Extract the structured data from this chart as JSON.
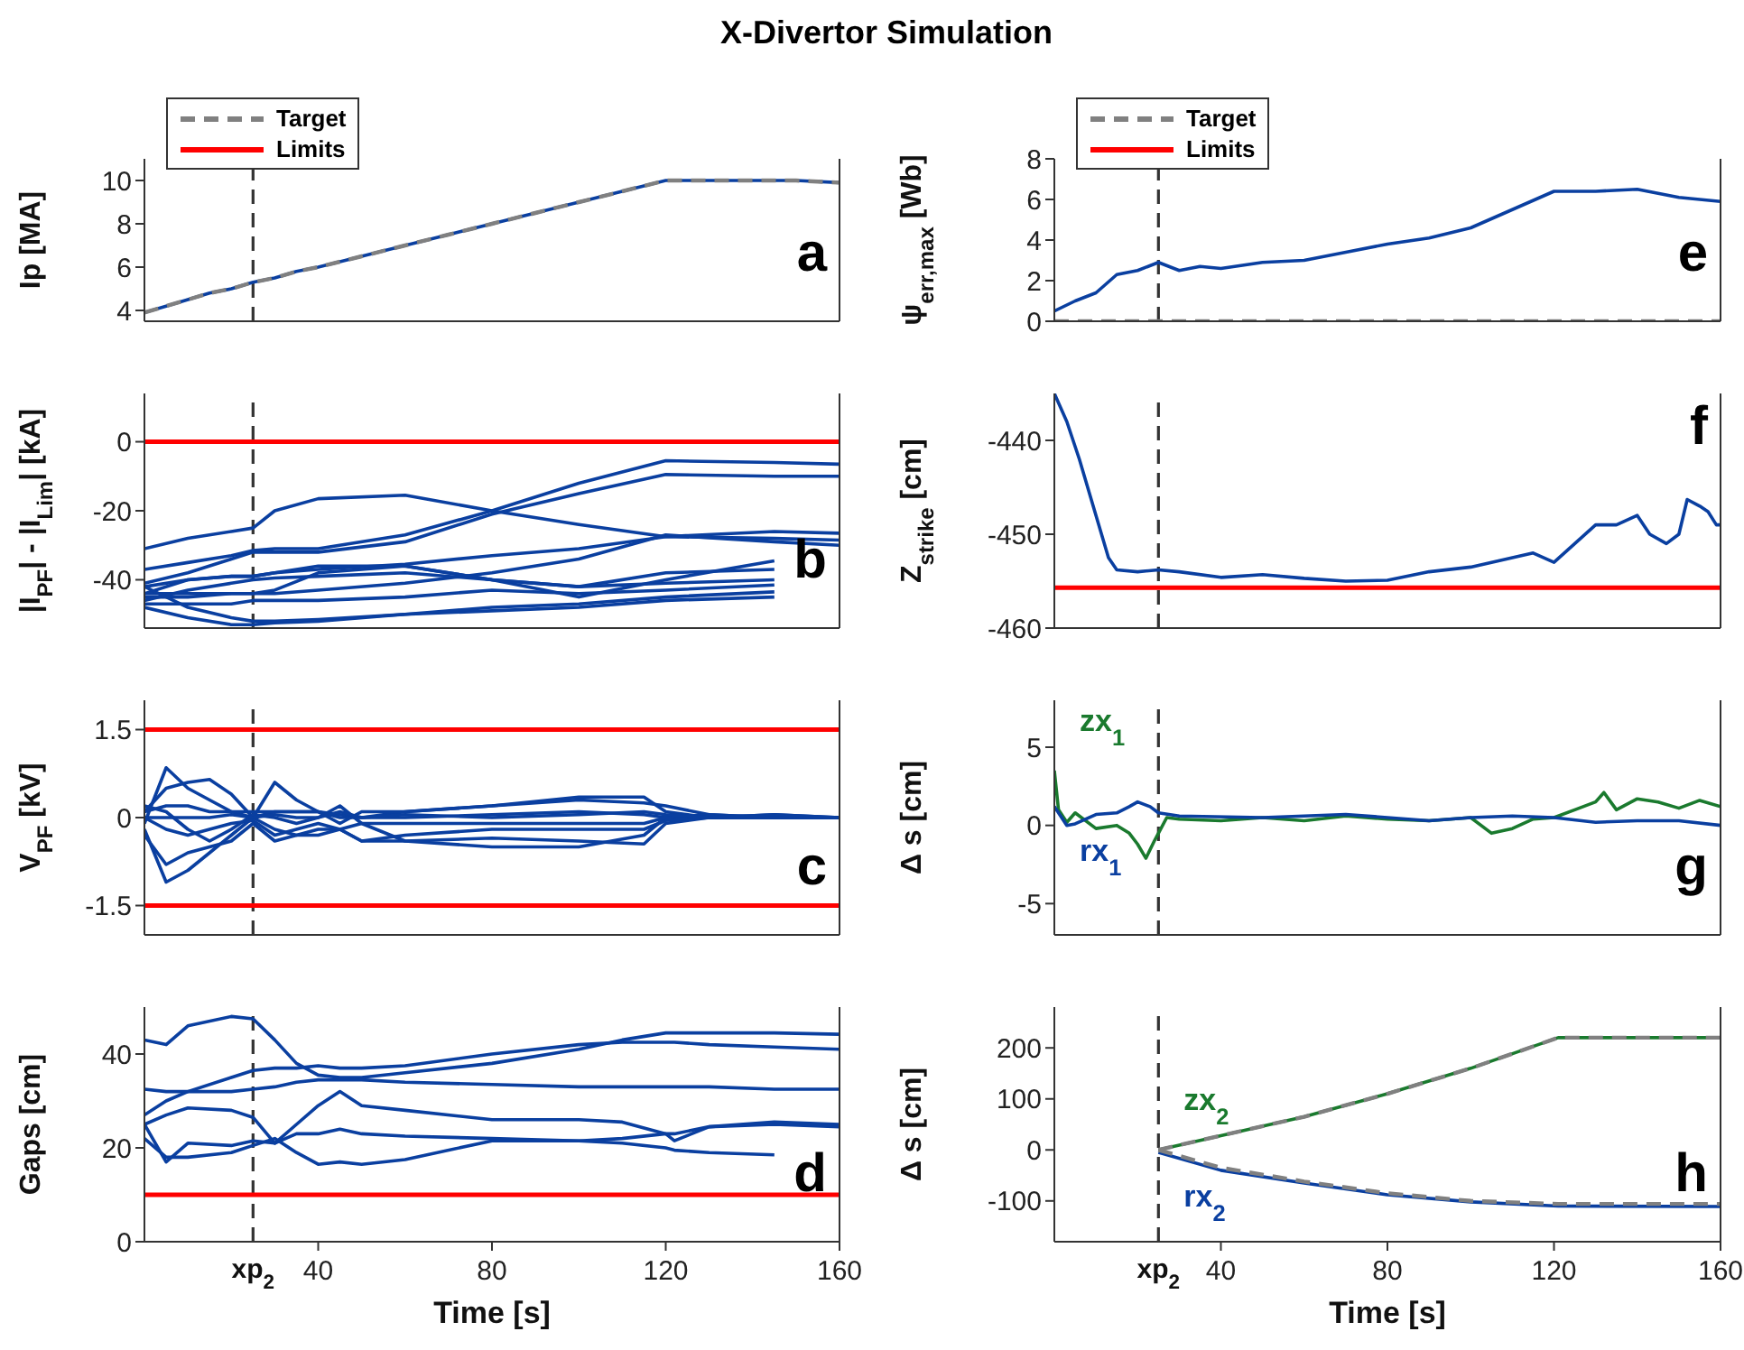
{
  "chart_data": [
    {
      "type": "line",
      "title": "X-Divertor Simulation",
      "ylabel": "Ip [MA]",
      "annotations": [
        "a"
      ],
      "legend": "top left",
      "tick_labels": "y",
      "x": [
        0,
        5,
        10,
        15,
        20,
        25,
        30,
        35,
        40,
        50,
        60,
        70,
        80,
        90,
        100,
        110,
        120,
        130,
        140,
        150,
        160
      ],
      "series": [
        {
          "color": "#0a3fa0",
          "values": [
            3.9,
            4.2,
            4.5,
            4.8,
            5.0,
            5.3,
            5.5,
            5.8,
            6.0,
            6.5,
            7.0,
            7.5,
            8.0,
            8.5,
            9.0,
            9.5,
            10.0,
            10.0,
            10.0,
            10.0,
            9.9
          ]
        },
        {
          "name": "Target",
          "color": "#808080",
          "line_style": "dashed",
          "values": [
            3.9,
            4.2,
            4.5,
            4.8,
            5.0,
            5.3,
            5.5,
            5.8,
            6.0,
            6.5,
            7.0,
            7.5,
            8.0,
            8.5,
            9.0,
            9.5,
            10.0,
            10.0,
            10.0,
            10.0,
            9.9
          ]
        },
        {
          "name": "Limits",
          "color": "#ff0000",
          "values": [
            null,
            null,
            null,
            null,
            null,
            null,
            null,
            null,
            null,
            null,
            null,
            null,
            null,
            null,
            null,
            null,
            null,
            null,
            null,
            null,
            null
          ]
        }
      ],
      "xlim": [
        0,
        160
      ],
      "xticks": [
        40,
        80,
        120,
        160
      ],
      "ylim": [
        3.5,
        11
      ],
      "yticks": [
        4,
        6,
        8,
        10
      ],
      "ref_lines": [
        {
          "axis": "x",
          "value": 25,
          "color": "#333333",
          "line_style": "dashed"
        }
      ]
    },
    {
      "type": "line",
      "ylabel": "ψ$_{err,max}$ [Wb]",
      "annotations": [
        "e"
      ],
      "legend": "top left",
      "tick_labels": "y",
      "x": [
        0,
        5,
        10,
        15,
        20,
        25,
        30,
        35,
        40,
        50,
        60,
        70,
        80,
        90,
        100,
        110,
        120,
        130,
        140,
        150,
        160
      ],
      "series": [
        {
          "color": "#0a3fa0",
          "values": [
            0.5,
            1.0,
            1.4,
            2.3,
            2.5,
            2.9,
            2.5,
            2.7,
            2.6,
            2.9,
            3.0,
            3.4,
            3.8,
            4.1,
            4.6,
            5.5,
            6.4,
            6.4,
            6.5,
            6.1,
            5.9
          ]
        },
        {
          "name": "Target",
          "color": "#808080",
          "line_style": "dashed",
          "values": [
            0,
            0,
            0,
            0,
            0,
            0,
            0,
            0,
            0,
            0,
            0,
            0,
            0,
            0,
            0,
            0,
            0,
            0,
            0,
            0,
            0
          ]
        },
        {
          "name": "Limits",
          "color": "#ff0000",
          "values": [
            null,
            null,
            null,
            null,
            null,
            null,
            null,
            null,
            null,
            null,
            null,
            null,
            null,
            null,
            null,
            null,
            null,
            null,
            null,
            null,
            null
          ]
        }
      ],
      "xlim": [
        0,
        160
      ],
      "xticks": [
        40,
        80,
        120,
        160
      ],
      "ylim": [
        0,
        8
      ],
      "yticks": [
        0,
        2,
        4,
        6,
        8
      ],
      "ref_lines": [
        {
          "axis": "x",
          "value": 25,
          "color": "#333333",
          "line_style": "dashed"
        }
      ]
    },
    {
      "type": "line",
      "ylabel": "|I$_{PF}$| - |I$_{Lim}$| [kA]",
      "annotations": [
        "b"
      ],
      "tick_labels": "y",
      "x": [
        0,
        10,
        20,
        25,
        30,
        40,
        60,
        80,
        100,
        120,
        145,
        160
      ],
      "series": [
        {
          "color": "#0a3fa0",
          "values": [
            -37,
            -35,
            -33,
            -31.5,
            -31,
            -31,
            -27,
            -20,
            -12,
            -5.5,
            -6,
            -6.5
          ]
        },
        {
          "color": "#0a3fa0",
          "values": [
            -41,
            -38,
            -34,
            -32,
            -32,
            -32,
            -29,
            -21,
            -15,
            -9.5,
            -10,
            -10
          ]
        },
        {
          "color": "#0a3fa0",
          "values": [
            -31,
            -28,
            -26,
            -25,
            -20,
            -16.5,
            -15.5,
            -20,
            -24,
            -27.5,
            -28,
            -28.5
          ]
        },
        {
          "color": "#0a3fa0",
          "values": [
            -44,
            -40,
            -39,
            -39,
            -38,
            -37,
            -35.5,
            -33,
            -31,
            -27.5,
            -26,
            -26.5
          ]
        },
        {
          "color": "#0a3fa0",
          "values": [
            -45,
            -45,
            -44,
            -44,
            -44,
            -43,
            -41,
            -38,
            -34,
            -27,
            -29,
            -30
          ]
        },
        {
          "color": "#0a3fa0",
          "values": [
            -42,
            -40,
            -39,
            -39,
            -38,
            -36,
            -36,
            -40,
            -45,
            -40,
            -34.5,
            null
          ]
        },
        {
          "color": "#0a3fa0",
          "values": [
            -44,
            -44,
            -44,
            -44,
            -43,
            -38,
            -36,
            -40,
            -42,
            -38,
            -37,
            null
          ]
        },
        {
          "color": "#0a3fa0",
          "values": [
            -46,
            -43,
            -41,
            -40,
            -39.5,
            -39,
            -38,
            -40,
            -42,
            -41,
            -40,
            null
          ]
        },
        {
          "color": "#0a3fa0",
          "values": [
            -47,
            -47,
            -47,
            -46,
            -46,
            -46,
            -45,
            -43,
            -44,
            -43,
            -41.5,
            null
          ]
        },
        {
          "color": "#0a3fa0",
          "values": [
            -48,
            -51,
            -53,
            -53,
            -52.5,
            -52,
            -50,
            -49,
            -48,
            -46,
            -45,
            null
          ]
        },
        {
          "color": "#0a3fa0",
          "values": [
            -42,
            -48,
            -51,
            -52,
            -52,
            -51.5,
            -50,
            -48,
            -47,
            -45,
            -43.5,
            null
          ]
        }
      ],
      "xlim": [
        0,
        160
      ],
      "xticks": [
        40,
        80,
        120,
        160
      ],
      "ylim": [
        -54,
        14
      ],
      "yticks": [
        -40,
        -20,
        0
      ],
      "ref_lines": [
        {
          "axis": "x",
          "value": 25,
          "color": "#333333",
          "line_style": "dashed"
        },
        {
          "axis": "y",
          "value": 0,
          "color": "#ff0000"
        }
      ]
    },
    {
      "type": "line",
      "ylabel": "Z$_{strike}$ [cm]",
      "annotations": [
        "f"
      ],
      "tick_labels": "y",
      "x": [
        0,
        3,
        6,
        10,
        13,
        15,
        20,
        25,
        30,
        40,
        50,
        60,
        70,
        80,
        90,
        100,
        110,
        115,
        120,
        125,
        130,
        135,
        140,
        143,
        147,
        150,
        152,
        155,
        157,
        159,
        160
      ],
      "series": [
        {
          "color": "#0a3fa0",
          "values": [
            -435,
            -438,
            -442,
            -448,
            -452.5,
            -453.8,
            -454,
            -453.8,
            -454,
            -454.6,
            -454.3,
            -454.7,
            -455,
            -454.9,
            -454,
            -453.5,
            -452.5,
            -452,
            -453,
            -451,
            -449,
            -449,
            -448,
            -450,
            -451,
            -450,
            -446.3,
            -447,
            -447.6,
            -449,
            -449
          ]
        }
      ],
      "xlim": [
        0,
        160
      ],
      "xticks": [
        40,
        80,
        120,
        160
      ],
      "ylim": [
        -460,
        -435
      ],
      "yticks": [
        -460,
        -450,
        -440
      ],
      "ref_lines": [
        {
          "axis": "x",
          "value": 25,
          "color": "#333333",
          "line_style": "dashed"
        },
        {
          "axis": "y",
          "value": -455.7,
          "color": "#ff0000"
        }
      ]
    },
    {
      "type": "line",
      "ylabel": "V$_{PF}$ [kV]",
      "annotations": [
        "c"
      ],
      "tick_labels": "y",
      "x": [
        0,
        5,
        10,
        15,
        20,
        25,
        30,
        35,
        40,
        45,
        50,
        60,
        80,
        100,
        115,
        120,
        130,
        145,
        160
      ],
      "series": [
        {
          "color": "#0a3fa0",
          "values": [
            -0.1,
            0.85,
            0.5,
            0.3,
            0.1,
            0,
            0.1,
            0.1,
            0.1,
            0.05,
            0,
            0,
            0.05,
            0.1,
            0.05,
            0,
            0,
            0,
            0
          ]
        },
        {
          "color": "#0a3fa0",
          "values": [
            0.1,
            0.5,
            0.6,
            0.65,
            0.4,
            0,
            -0.2,
            -0.3,
            -0.3,
            -0.2,
            -0.4,
            -0.4,
            -0.35,
            -0.4,
            -0.45,
            -0.1,
            0,
            0,
            0
          ]
        },
        {
          "color": "#0a3fa0",
          "values": [
            -0.2,
            -1.1,
            -0.9,
            -0.6,
            -0.3,
            0,
            0.6,
            0.3,
            0.1,
            0,
            0,
            0.1,
            0.2,
            0.35,
            0.35,
            0.1,
            0,
            0.05,
            0
          ]
        },
        {
          "color": "#0a3fa0",
          "values": [
            -0.3,
            -0.8,
            -0.6,
            -0.5,
            -0.4,
            -0.1,
            -0.4,
            -0.3,
            -0.2,
            -0.2,
            -0.1,
            -0.4,
            -0.5,
            -0.5,
            -0.3,
            0,
            0,
            0,
            0
          ]
        },
        {
          "color": "#0a3fa0",
          "values": [
            0.1,
            0.2,
            0.2,
            0.1,
            0.1,
            0.1,
            0.1,
            0.1,
            0.1,
            -0.1,
            0.1,
            0.1,
            0.2,
            0.3,
            0.25,
            0.2,
            0.05,
            0,
            0
          ]
        },
        {
          "color": "#0a3fa0",
          "values": [
            0,
            -0.2,
            -0.3,
            -0.2,
            -0.1,
            -0.05,
            -0.3,
            -0.2,
            -0.1,
            -0.2,
            -0.4,
            -0.3,
            -0.2,
            -0.2,
            -0.2,
            -0.05,
            0,
            0,
            0
          ]
        },
        {
          "color": "#0a3fa0",
          "values": [
            0.2,
            0.1,
            -0.2,
            -0.4,
            -0.2,
            0.05,
            0,
            -0.1,
            0,
            0.2,
            -0.1,
            -0.1,
            -0.1,
            -0.1,
            -0.1,
            0,
            0.05,
            0,
            0
          ]
        },
        {
          "color": "#0a3fa0",
          "values": [
            0,
            0,
            0,
            0,
            0.05,
            0,
            0.05,
            0,
            0,
            0.1,
            0,
            0.05,
            0,
            0.05,
            0.1,
            0.05,
            0,
            0.05,
            0
          ]
        }
      ],
      "xlim": [
        0,
        160
      ],
      "xticks": [
        40,
        80,
        120,
        160
      ],
      "ylim": [
        -2,
        2
      ],
      "yticks": [
        -1.5,
        0,
        1.5
      ],
      "ref_lines": [
        {
          "axis": "x",
          "value": 25,
          "color": "#333333",
          "line_style": "dashed"
        },
        {
          "axis": "y",
          "value": 1.5,
          "color": "#ff0000"
        },
        {
          "axis": "y",
          "value": -1.5,
          "color": "#ff0000"
        }
      ]
    },
    {
      "type": "line",
      "ylabel": "Δ s [cm]",
      "annotations": [
        "g"
      ],
      "tick_labels": "y",
      "series": [
        {
          "name": "zx$_{1}$",
          "color": "#1a7a2e",
          "x": [
            0,
            1,
            3,
            5,
            10,
            15,
            18,
            20,
            22,
            24,
            25,
            27,
            30,
            40,
            50,
            60,
            70,
            80,
            90,
            100,
            105,
            110,
            115,
            120,
            125,
            130,
            132,
            135,
            140,
            145,
            150,
            155,
            160
          ],
          "values": [
            3.5,
            1,
            0.2,
            0.8,
            -0.2,
            0,
            -0.5,
            -1.2,
            -2.1,
            -1,
            -0.5,
            0.5,
            0.4,
            0.3,
            0.5,
            0.3,
            0.6,
            0.4,
            0.3,
            0.5,
            -0.5,
            -0.2,
            0.4,
            0.5,
            1,
            1.5,
            2.1,
            1,
            1.7,
            1.5,
            1.1,
            1.6,
            1.2
          ]
        },
        {
          "name": "rx$_{1}$",
          "color": "#0a3fa0",
          "x": [
            0,
            3,
            5,
            10,
            15,
            18,
            20,
            23,
            25,
            30,
            50,
            70,
            80,
            90,
            100,
            110,
            120,
            130,
            140,
            150,
            160
          ],
          "values": [
            1.2,
            0,
            0.1,
            0.7,
            0.8,
            1.2,
            1.5,
            1.2,
            0.8,
            0.6,
            0.5,
            0.7,
            0.5,
            0.3,
            0.5,
            0.6,
            0.5,
            0.2,
            0.3,
            0.3,
            0
          ]
        }
      ],
      "xlim": [
        0,
        160
      ],
      "xticks": [
        40,
        80,
        120,
        160
      ],
      "ylim": [
        -7,
        8
      ],
      "yticks": [
        -5,
        0,
        5
      ],
      "ref_lines": [
        {
          "axis": "x",
          "value": 25,
          "color": "#333333",
          "line_style": "dashed"
        }
      ]
    },
    {
      "type": "line",
      "xlabel": "Time [s]",
      "ylabel": "Gaps [cm]",
      "annotations": [
        "d"
      ],
      "x": [
        0,
        5,
        10,
        20,
        25,
        30,
        35,
        40,
        45,
        50,
        60,
        80,
        100,
        110,
        120,
        122,
        130,
        145,
        160
      ],
      "ref_lines": [
        {
          "axis": "x",
          "value": 25,
          "color": "#333333",
          "line_style": "dashed",
          "label": "xp$_{2}$"
        },
        {
          "axis": "y",
          "value": 10,
          "color": "#ff0000"
        }
      ],
      "series": [
        {
          "color": "#0a3fa0",
          "values": [
            43,
            42,
            46,
            48,
            47.5,
            43,
            38,
            35.5,
            35,
            35,
            36,
            38,
            41,
            43,
            44.5,
            44.5,
            44.5,
            44.5,
            44.2
          ]
        },
        {
          "color": "#0a3fa0",
          "values": [
            32.5,
            32,
            32,
            32,
            32.5,
            33,
            34,
            34.5,
            34.5,
            34.5,
            34,
            33.5,
            33,
            33,
            33,
            33,
            33,
            32.5,
            32.5
          ]
        },
        {
          "color": "#0a3fa0",
          "values": [
            27,
            30,
            32,
            35,
            36.5,
            37,
            37,
            37.5,
            37,
            37,
            37.5,
            40,
            42,
            42.5,
            42.5,
            42.5,
            42,
            41.5,
            41
          ]
        },
        {
          "color": "#0a3fa0",
          "values": [
            25,
            27,
            28.5,
            28,
            26.5,
            21,
            25,
            29,
            32,
            29,
            28,
            26,
            26,
            25.5,
            23,
            21.5,
            24.5,
            25.5,
            25
          ]
        },
        {
          "color": "#0a3fa0",
          "values": [
            25,
            17,
            21,
            20.5,
            21.5,
            21,
            23,
            23,
            24,
            23,
            22.5,
            22,
            21.5,
            22,
            23,
            23,
            24.5,
            25,
            24.5
          ]
        },
        {
          "color": "#0a3fa0",
          "values": [
            22,
            18,
            18,
            19,
            20.5,
            22,
            19,
            16.5,
            17,
            16.5,
            17.5,
            21.5,
            21.5,
            21,
            20,
            19.5,
            19,
            18.5,
            null
          ]
        }
      ],
      "xlim": [
        0,
        160
      ],
      "xticks": [
        40,
        80,
        120,
        160
      ],
      "ylim": [
        0,
        50
      ],
      "yticks": [
        0,
        20,
        40
      ]
    },
    {
      "type": "line",
      "xlabel": "Time [s]",
      "ylabel": "Δ s [cm]",
      "annotations": [
        "h"
      ],
      "x": [
        25,
        40,
        60,
        80,
        100,
        121,
        160
      ],
      "series": [
        {
          "name": "zx$_{2}$",
          "color": "#1a7a2e",
          "values": [
            0,
            28,
            65,
            110,
            160,
            220,
            220
          ]
        },
        {
          "color": "#808080",
          "line_style": "dashed",
          "values": [
            0,
            28,
            65,
            110,
            160,
            220,
            220
          ]
        },
        {
          "name": "rx$_{2}$",
          "color": "#0a3fa0",
          "values": [
            -5,
            -40,
            -65,
            -88,
            -102,
            -110,
            -111
          ]
        },
        {
          "color": "#808080",
          "line_style": "dashed",
          "values": [
            0,
            -35,
            -62,
            -85,
            -100,
            -106,
            -106
          ]
        }
      ],
      "xlim": [
        0,
        160
      ],
      "xticks": [
        40,
        80,
        120,
        160
      ],
      "ylim": [
        -180,
        280
      ],
      "yticks": [
        -100,
        0,
        100,
        200
      ],
      "ref_lines": [
        {
          "axis": "x",
          "value": 25,
          "color": "#333333",
          "line_style": "dashed",
          "label": "xp$_{2}$"
        }
      ]
    }
  ]
}
